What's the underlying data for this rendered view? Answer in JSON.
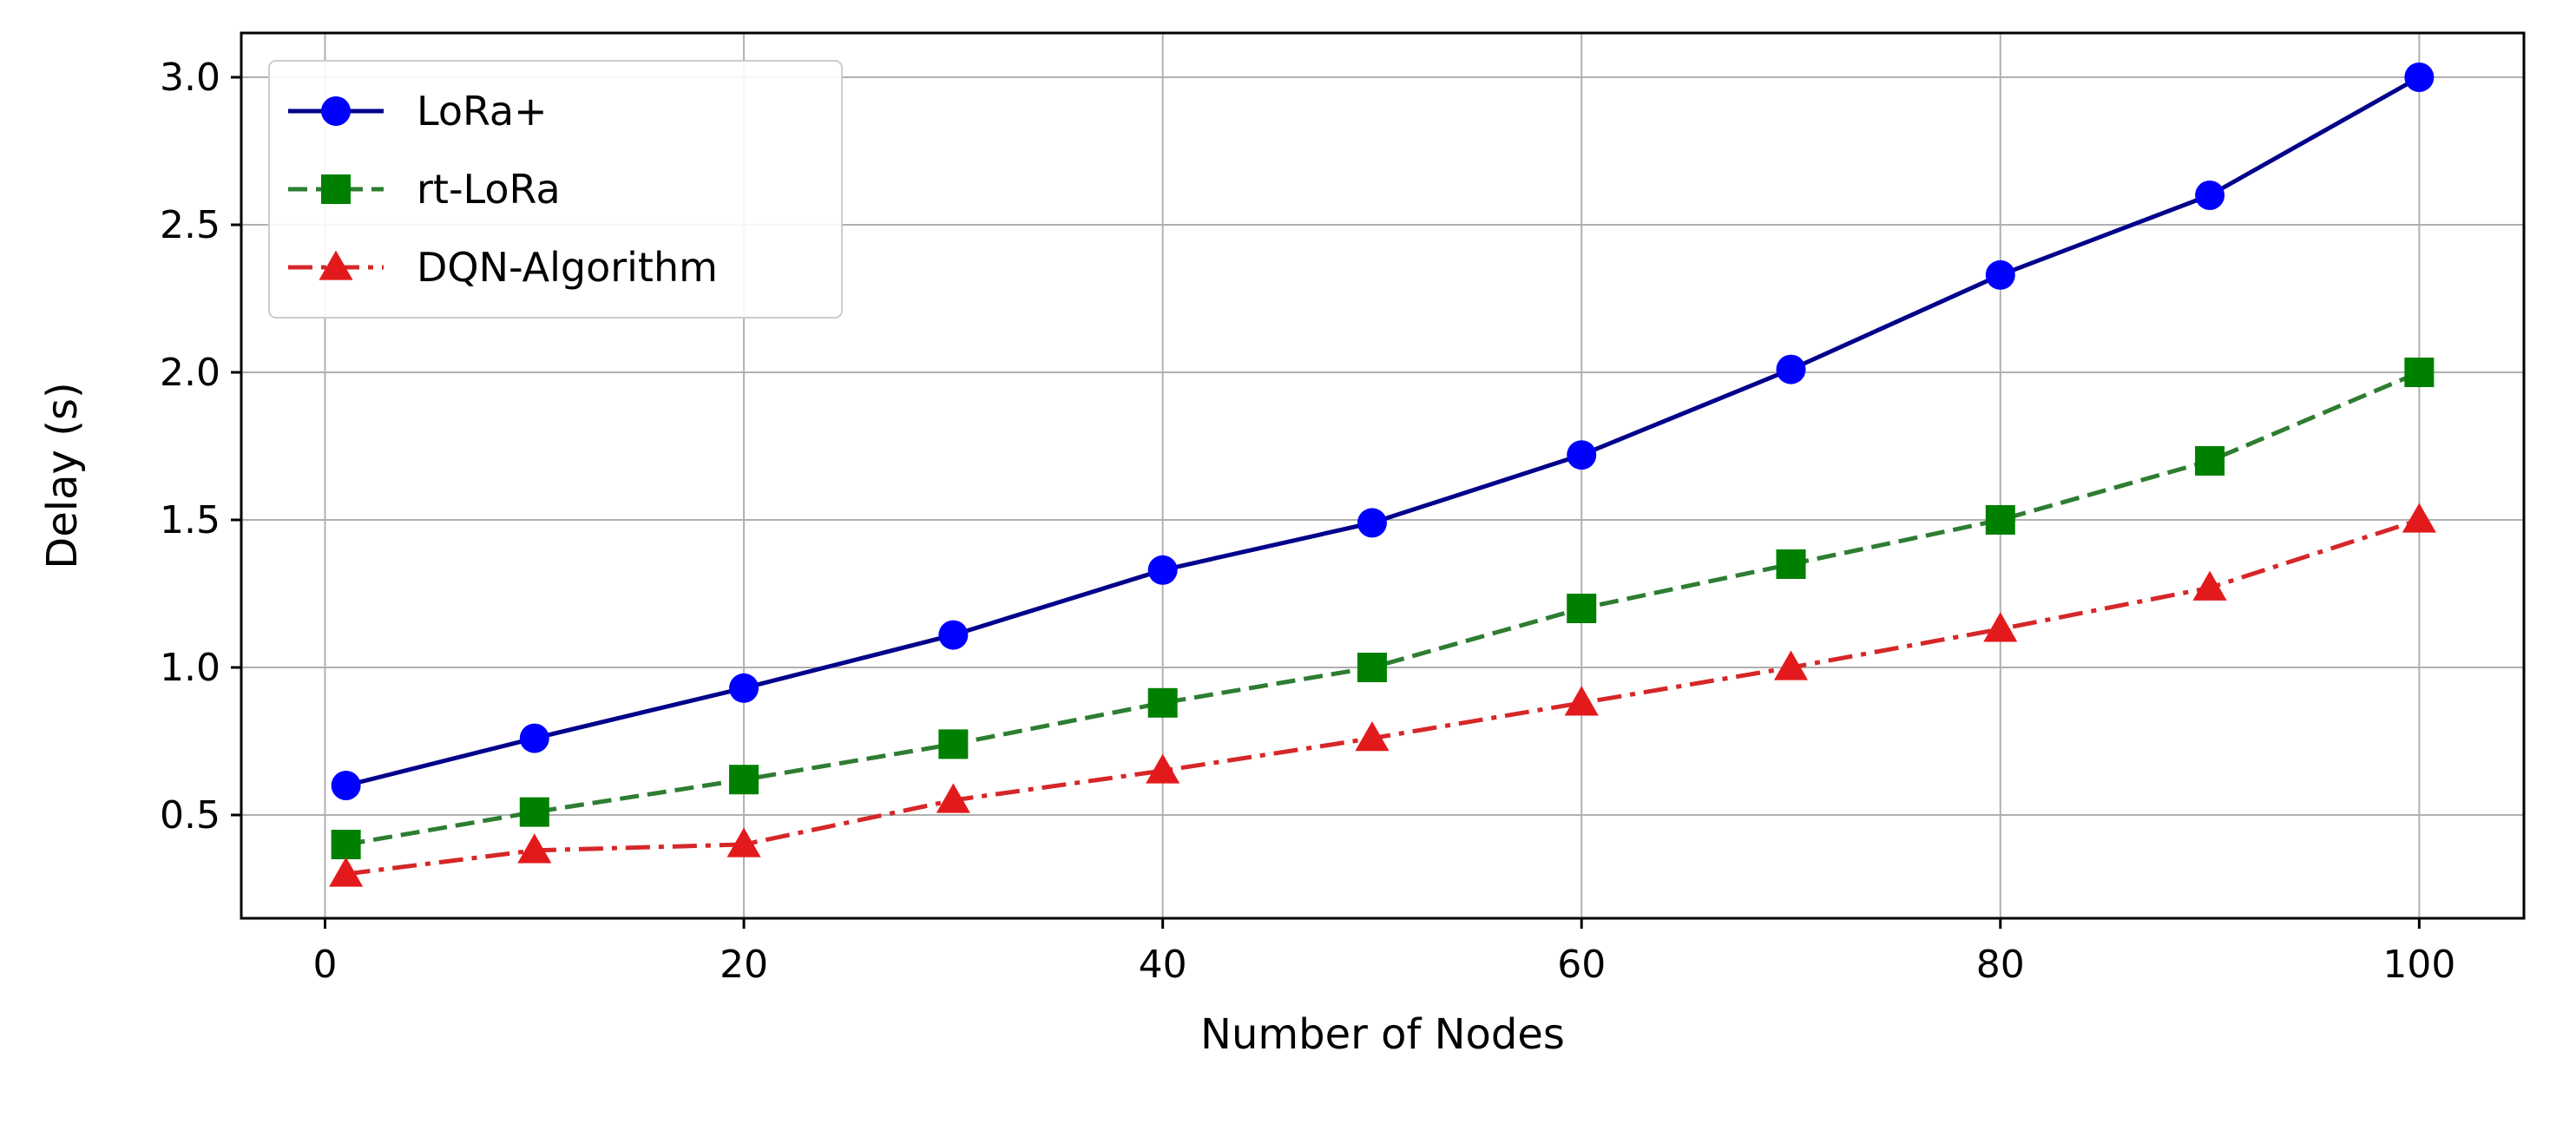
{
  "chart_data": {
    "type": "line",
    "title": "",
    "xlabel": "Number of Nodes",
    "ylabel": "Delay (s)",
    "xlim": [
      -4,
      105
    ],
    "ylim": [
      0.15,
      3.15
    ],
    "x_ticks": [
      "0",
      "20",
      "40",
      "60",
      "80",
      "100"
    ],
    "y_ticks": [
      "0.5",
      "1.0",
      "1.5",
      "2.0",
      "2.5",
      "3.0"
    ],
    "grid": true,
    "legend_position": "top-left",
    "x": [
      1,
      10,
      20,
      30,
      40,
      50,
      60,
      70,
      80,
      90,
      100
    ],
    "series": [
      {
        "name": "LoRa+",
        "color": "#00008b",
        "marker_color": "#0000ff",
        "marker": "circle",
        "line_style": "solid",
        "values": [
          0.6,
          0.76,
          0.93,
          1.11,
          1.33,
          1.49,
          1.72,
          2.01,
          2.33,
          2.6,
          3.0
        ]
      },
      {
        "name": "rt-LoRa",
        "color": "#2e7d32",
        "marker_color": "#008000",
        "marker": "square",
        "line_style": "dashed",
        "values": [
          0.4,
          0.51,
          0.62,
          0.74,
          0.88,
          1.0,
          1.2,
          1.35,
          1.5,
          1.7,
          2.0
        ]
      },
      {
        "name": "DQN-Algorithm",
        "color": "#d62728",
        "marker_color": "#e31a1c",
        "marker": "triangle",
        "line_style": "dashdot",
        "values": [
          0.3,
          0.38,
          0.4,
          0.55,
          0.65,
          0.76,
          0.88,
          1.0,
          1.13,
          1.27,
          1.5
        ]
      }
    ]
  }
}
